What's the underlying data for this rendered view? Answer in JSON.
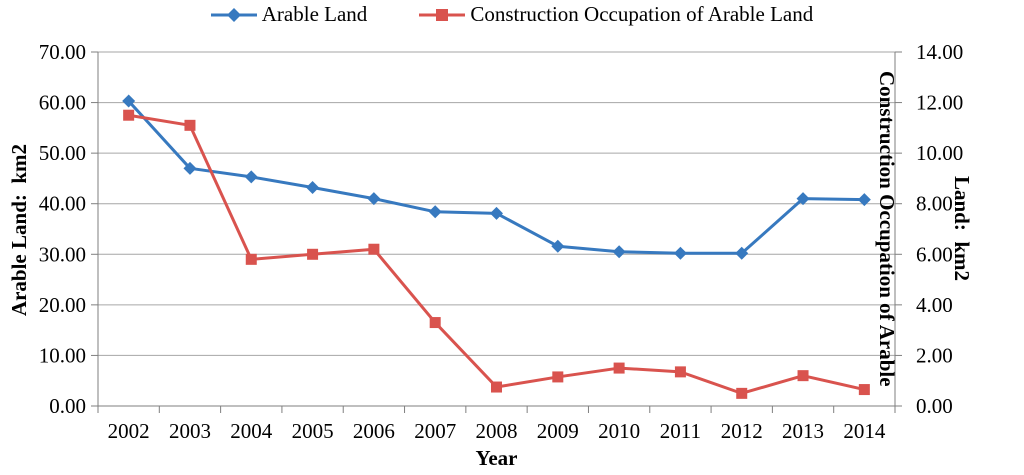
{
  "chart_data": {
    "type": "line",
    "title": "",
    "grid": true,
    "legend_position": "top",
    "categories": [
      "2002",
      "2003",
      "2004",
      "2005",
      "2006",
      "2007",
      "2008",
      "2009",
      "2010",
      "2011",
      "2012",
      "2013",
      "2014"
    ],
    "xlabel": "Year",
    "left_axis": {
      "label": "Arable Land:  km2",
      "min": 0,
      "max": 70,
      "step": 10,
      "decimals": 2,
      "tick_labels": [
        "0.00",
        "10.00",
        "20.00",
        "30.00",
        "40.00",
        "50.00",
        "60.00",
        "70.00"
      ]
    },
    "right_axis": {
      "label_line1": "Construction Occupation of Arable",
      "label_line2": "Land:  km2",
      "min": 0,
      "max": 14,
      "step": 2,
      "decimals": 2,
      "tick_labels": [
        "0.00",
        "2.00",
        "4.00",
        "6.00",
        "8.00",
        "10.00",
        "12.00",
        "14.00"
      ]
    },
    "series": [
      {
        "name": "Arable Land",
        "axis": "left",
        "color": "#3779BF",
        "marker": "diamond",
        "values": [
          60.3,
          47.0,
          45.3,
          43.2,
          41.0,
          38.4,
          38.1,
          31.6,
          30.5,
          30.2,
          30.2,
          41.0,
          40.8
        ]
      },
      {
        "name": "Construction Occupation of Arable Land",
        "axis": "right",
        "color": "#D9534E",
        "marker": "square",
        "values": [
          11.5,
          11.1,
          5.8,
          6.0,
          6.2,
          3.3,
          0.75,
          1.15,
          1.5,
          1.35,
          0.5,
          1.2,
          0.65
        ]
      }
    ],
    "colors": {
      "gridline": "#A6A6A6",
      "axis": "#7F7F7F",
      "text": "#000000"
    }
  }
}
